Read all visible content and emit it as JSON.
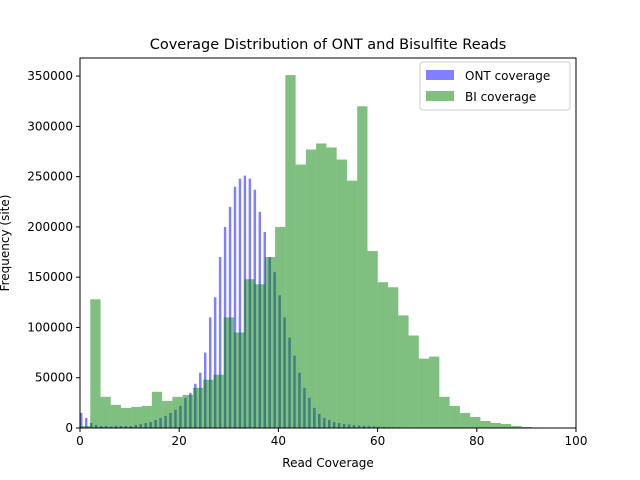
{
  "chart_data": {
    "type": "bar",
    "title": "Coverage Distribution of ONT and Bisulfite Reads",
    "xlabel": "Read Coverage",
    "ylabel": "Frequency (site)",
    "xlim": [
      0,
      100
    ],
    "ylim": [
      0,
      368000
    ],
    "xticks": [
      0,
      20,
      40,
      60,
      80,
      100
    ],
    "yticks": [
      0,
      50000,
      100000,
      150000,
      200000,
      250000,
      300000,
      350000
    ],
    "legend_position": "top-right",
    "grid": false,
    "series": [
      {
        "name": "ONT coverage",
        "color": "#0000ff",
        "opacity": 0.5,
        "bin_width": 0.5,
        "x": [
          0,
          1,
          2,
          3,
          4,
          5,
          6,
          7,
          8,
          9,
          10,
          11,
          12,
          13,
          14,
          15,
          16,
          17,
          18,
          19,
          20,
          21,
          22,
          23,
          24,
          25,
          26,
          27,
          28,
          29,
          30,
          31,
          32,
          33,
          34,
          35,
          36,
          37,
          38,
          39,
          40,
          41,
          42,
          43,
          44,
          45,
          46,
          47,
          48,
          49,
          50,
          51,
          52,
          53,
          54,
          55,
          56,
          57,
          58,
          59,
          60,
          61,
          62,
          63,
          64,
          65,
          66,
          67,
          68,
          69,
          70
        ],
        "values": [
          15000,
          10000,
          5000,
          3000,
          2000,
          2000,
          1500,
          2000,
          2000,
          2000,
          2000,
          3000,
          4000,
          5000,
          6000,
          8000,
          10000,
          12000,
          15000,
          18000,
          22000,
          30000,
          35000,
          44000,
          55000,
          75000,
          110000,
          130000,
          170000,
          200000,
          220000,
          240000,
          248000,
          251000,
          248000,
          237000,
          215000,
          195000,
          170000,
          155000,
          132000,
          110000,
          90000,
          72000,
          55000,
          40000,
          30000,
          20000,
          14000,
          10000,
          8000,
          6000,
          5000,
          4000,
          3500,
          3000,
          2500,
          2000,
          1800,
          1500,
          1200,
          1000,
          900,
          800,
          700,
          600,
          500,
          400,
          300,
          200,
          100
        ]
      },
      {
        "name": "BI coverage",
        "color": "#008000",
        "opacity": 0.5,
        "bin_width": 2.07,
        "x": [
          0,
          2.07,
          4.14,
          6.21,
          8.28,
          10.35,
          12.42,
          14.49,
          16.56,
          18.63,
          20.7,
          22.77,
          24.84,
          26.91,
          28.98,
          31.05,
          33.12,
          35.19,
          37.26,
          39.33,
          41.4,
          43.47,
          45.54,
          47.61,
          49.68,
          51.75,
          53.82,
          55.89,
          57.96,
          60.03,
          62.1,
          64.17,
          66.24,
          68.31,
          70.38,
          72.45,
          74.52,
          76.59,
          78.66,
          80.73,
          82.8,
          84.87,
          86.94,
          89.01,
          91.08,
          93.15
        ],
        "values": [
          2000,
          128000,
          31000,
          23000,
          20000,
          21000,
          22000,
          36000,
          27000,
          31000,
          33000,
          40000,
          48000,
          53000,
          110000,
          95000,
          148000,
          143000,
          170000,
          200000,
          351000,
          262000,
          277000,
          283000,
          279000,
          267000,
          246000,
          320000,
          176000,
          145000,
          140000,
          112000,
          92000,
          69000,
          71000,
          31000,
          22000,
          15000,
          11000,
          7000,
          5000,
          4000,
          2000,
          1000,
          500,
          300
        ]
      }
    ]
  }
}
